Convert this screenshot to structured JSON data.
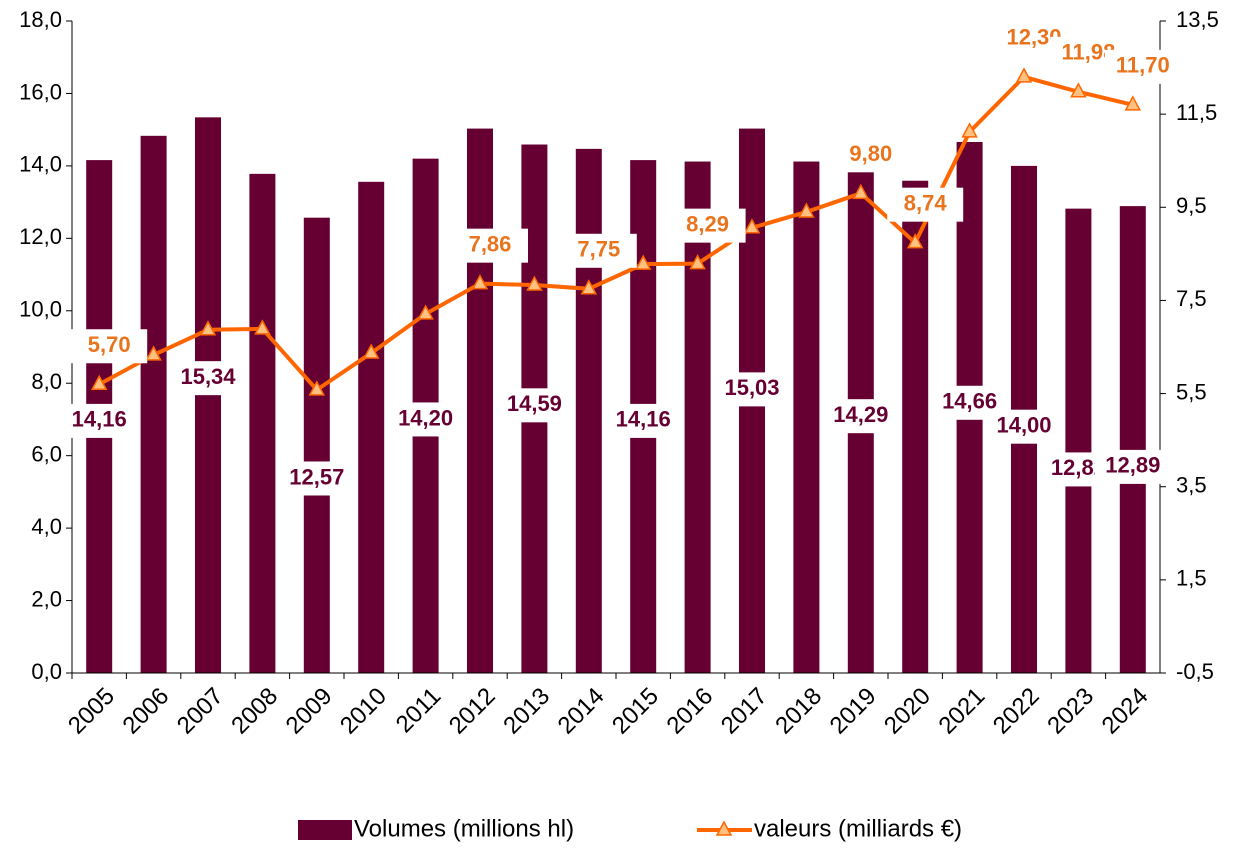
{
  "chart_data": {
    "type": "bar",
    "categories": [
      "2005",
      "2006",
      "2007",
      "2008",
      "2009",
      "2010",
      "2011",
      "2012",
      "2013",
      "2014",
      "2015",
      "2016",
      "2017",
      "2018",
      "2019",
      "2020",
      "2021",
      "2022",
      "2023",
      "2024"
    ],
    "series": [
      {
        "name": "Volumes (millions hl)",
        "color": "#660033",
        "type": "bar",
        "values": [
          14.16,
          14.83,
          15.34,
          13.78,
          12.57,
          13.56,
          14.2,
          15.03,
          14.59,
          14.47,
          14.16,
          14.12,
          15.03,
          14.12,
          14.29,
          13.59,
          14.66,
          14.0,
          12.82,
          12.89
        ],
        "value_labels": [
          "14,16",
          null,
          "15,34",
          null,
          "12,57",
          null,
          "14,20",
          null,
          "14,59",
          null,
          "14,16",
          null,
          "15,03",
          null,
          "14,29",
          null,
          "14,66",
          "14,00",
          "12,82",
          "12,89"
        ]
      },
      {
        "name": "valeurs (milliards €)",
        "color": "#ff6600",
        "type": "line",
        "axis": "y2",
        "values": [
          5.7,
          6.33,
          6.87,
          6.89,
          5.58,
          6.37,
          7.21,
          7.86,
          7.83,
          7.75,
          8.28,
          8.29,
          9.06,
          9.4,
          9.8,
          8.74,
          11.12,
          12.3,
          11.98,
          11.7
        ],
        "value_labels": [
          "5,70",
          null,
          null,
          null,
          null,
          null,
          null,
          "7,86",
          null,
          "7,75",
          null,
          "8,29",
          null,
          null,
          "9,80",
          "8,74",
          null,
          "12,30",
          "11,98",
          "11,70"
        ]
      }
    ],
    "ylim": [
      0,
      18
    ],
    "yticks": [
      {
        "value": 0,
        "label": "0,0"
      },
      {
        "value": 2,
        "label": "2,0"
      },
      {
        "value": 4,
        "label": "4,0"
      },
      {
        "value": 6,
        "label": "6,0"
      },
      {
        "value": 8,
        "label": "8,0"
      },
      {
        "value": 10,
        "label": "10,0"
      },
      {
        "value": 12,
        "label": "12,0"
      },
      {
        "value": 14,
        "label": "14,0"
      },
      {
        "value": 16,
        "label": "16,0"
      },
      {
        "value": 18,
        "label": "18,0"
      }
    ],
    "y2lim": [
      -0.5,
      13.5
    ],
    "y2ticks": [
      {
        "value": -0.5,
        "label": "-0,5"
      },
      {
        "value": 1.5,
        "label": "1,5"
      },
      {
        "value": 3.5,
        "label": "3,5"
      },
      {
        "value": 5.5,
        "label": "5,5"
      },
      {
        "value": 7.5,
        "label": "7,5"
      },
      {
        "value": 9.5,
        "label": "9,5"
      },
      {
        "value": 11.5,
        "label": "11,5"
      },
      {
        "value": 13.5,
        "label": "13,5"
      }
    ],
    "grid": false,
    "legend": "bottom"
  }
}
